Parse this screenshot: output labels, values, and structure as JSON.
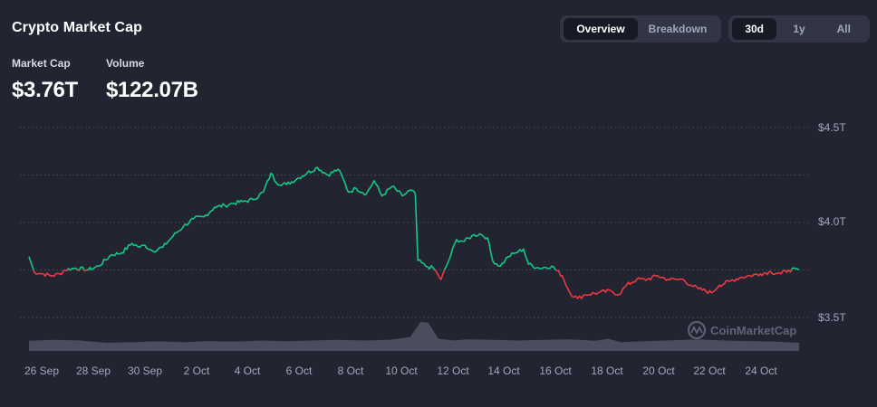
{
  "header": {
    "title": "Crypto Market Cap",
    "view_tabs": [
      {
        "label": "Overview",
        "active": true
      },
      {
        "label": "Breakdown",
        "active": false
      }
    ],
    "range_tabs": [
      {
        "label": "30d",
        "active": true
      },
      {
        "label": "1y",
        "active": false
      },
      {
        "label": "All",
        "active": false
      }
    ]
  },
  "stats": {
    "market_cap_label": "Market Cap",
    "market_cap_value": "$3.76T",
    "volume_label": "Volume",
    "volume_value": "$122.07B"
  },
  "watermark": "CoinMarketCap",
  "colors": {
    "background": "#222531",
    "up": "#16c784",
    "down": "#ea3943",
    "volume": "#4a4e5c",
    "grid": "#4b4f5e",
    "axis_text": "#a1a7bb"
  },
  "chart_data": {
    "type": "line",
    "title": "",
    "xlabel": "",
    "ylabel": "",
    "ylim": [
      3.5,
      4.5
    ],
    "y_ticks": [
      "$3.5T",
      "$4.0T",
      "$4.5T"
    ],
    "x_ticks": [
      "26 Sep",
      "28 Sep",
      "30 Sep",
      "2 Oct",
      "4 Oct",
      "6 Oct",
      "8 Oct",
      "10 Oct",
      "12 Oct",
      "14 Oct",
      "16 Oct",
      "18 Oct",
      "20 Oct",
      "22 Oct",
      "24 Oct"
    ],
    "baseline": 3.75,
    "grid": "horizontal dotted",
    "series": [
      {
        "values": [
          [
            0,
            3.82
          ],
          [
            0.2,
            3.74
          ],
          [
            0.5,
            3.73
          ],
          [
            0.9,
            3.72
          ],
          [
            1.2,
            3.73
          ],
          [
            1.4,
            3.75
          ],
          [
            1.8,
            3.76
          ],
          [
            2.3,
            3.75
          ],
          [
            2.7,
            3.77
          ],
          [
            3.2,
            3.83
          ],
          [
            3.6,
            3.84
          ],
          [
            4.0,
            3.89
          ],
          [
            4.3,
            3.87
          ],
          [
            4.5,
            3.88
          ],
          [
            4.8,
            3.85
          ],
          [
            5.2,
            3.87
          ],
          [
            5.6,
            3.93
          ],
          [
            6.0,
            3.98
          ],
          [
            6.4,
            4.02
          ],
          [
            6.8,
            4.03
          ],
          [
            7.2,
            4.08
          ],
          [
            7.6,
            4.09
          ],
          [
            7.9,
            4.1
          ],
          [
            8.3,
            4.11
          ],
          [
            8.7,
            4.12
          ],
          [
            9.1,
            4.16
          ],
          [
            9.4,
            4.26
          ],
          [
            9.6,
            4.21
          ],
          [
            10.0,
            4.2
          ],
          [
            10.4,
            4.23
          ],
          [
            10.8,
            4.26
          ],
          [
            11.2,
            4.29
          ],
          [
            11.6,
            4.25
          ],
          [
            12.0,
            4.28
          ],
          [
            12.2,
            4.23
          ],
          [
            12.4,
            4.16
          ],
          [
            12.7,
            4.18
          ],
          [
            13.1,
            4.15
          ],
          [
            13.4,
            4.22
          ],
          [
            13.7,
            4.14
          ],
          [
            14.1,
            4.19
          ],
          [
            14.5,
            4.14
          ],
          [
            14.8,
            4.17
          ],
          [
            15.0,
            4.15
          ],
          [
            15.1,
            3.8
          ],
          [
            15.4,
            3.77
          ],
          [
            15.7,
            3.76
          ],
          [
            16.0,
            3.7
          ],
          [
            16.3,
            3.8
          ],
          [
            16.6,
            3.91
          ],
          [
            16.9,
            3.9
          ],
          [
            17.2,
            3.93
          ],
          [
            17.5,
            3.94
          ],
          [
            17.8,
            3.92
          ],
          [
            18.0,
            3.8
          ],
          [
            18.3,
            3.77
          ],
          [
            18.6,
            3.82
          ],
          [
            18.9,
            3.84
          ],
          [
            19.2,
            3.86
          ],
          [
            19.4,
            3.78
          ],
          [
            19.8,
            3.76
          ],
          [
            20.3,
            3.77
          ],
          [
            20.7,
            3.72
          ],
          [
            21.0,
            3.63
          ],
          [
            21.3,
            3.6
          ],
          [
            21.6,
            3.62
          ],
          [
            22.1,
            3.63
          ],
          [
            22.6,
            3.64
          ],
          [
            22.9,
            3.62
          ],
          [
            23.2,
            3.67
          ],
          [
            23.6,
            3.7
          ],
          [
            24.0,
            3.7
          ],
          [
            24.4,
            3.72
          ],
          [
            24.8,
            3.7
          ],
          [
            25.1,
            3.7
          ],
          [
            25.4,
            3.7
          ],
          [
            25.7,
            3.67
          ],
          [
            26.0,
            3.65
          ],
          [
            26.5,
            3.63
          ],
          [
            26.8,
            3.67
          ],
          [
            27.2,
            3.69
          ],
          [
            27.6,
            3.71
          ],
          [
            28.0,
            3.72
          ],
          [
            28.4,
            3.73
          ],
          [
            28.8,
            3.74
          ],
          [
            29.2,
            3.73
          ],
          [
            29.5,
            3.75
          ],
          [
            29.9,
            3.75
          ]
        ]
      }
    ],
    "volume": [
      [
        0,
        0.35
      ],
      [
        1,
        0.38
      ],
      [
        2,
        0.36
      ],
      [
        3,
        0.28
      ],
      [
        4,
        0.3
      ],
      [
        5,
        0.33
      ],
      [
        6,
        0.3
      ],
      [
        7,
        0.34
      ],
      [
        8,
        0.32
      ],
      [
        9,
        0.36
      ],
      [
        10,
        0.33
      ],
      [
        11,
        0.36
      ],
      [
        12,
        0.38
      ],
      [
        13,
        0.36
      ],
      [
        14,
        0.38
      ],
      [
        14.8,
        0.48
      ],
      [
        15.2,
        1.0
      ],
      [
        15.5,
        0.98
      ],
      [
        15.9,
        0.42
      ],
      [
        16.5,
        0.36
      ],
      [
        17,
        0.4
      ],
      [
        18,
        0.38
      ],
      [
        19,
        0.36
      ],
      [
        20,
        0.38
      ],
      [
        21,
        0.4
      ],
      [
        22,
        0.35
      ],
      [
        22.5,
        0.42
      ],
      [
        23,
        0.3
      ],
      [
        24,
        0.34
      ],
      [
        25,
        0.37
      ],
      [
        26,
        0.4
      ],
      [
        27,
        0.36
      ],
      [
        28,
        0.34
      ],
      [
        29,
        0.32
      ],
      [
        29.9,
        0.28
      ]
    ]
  }
}
